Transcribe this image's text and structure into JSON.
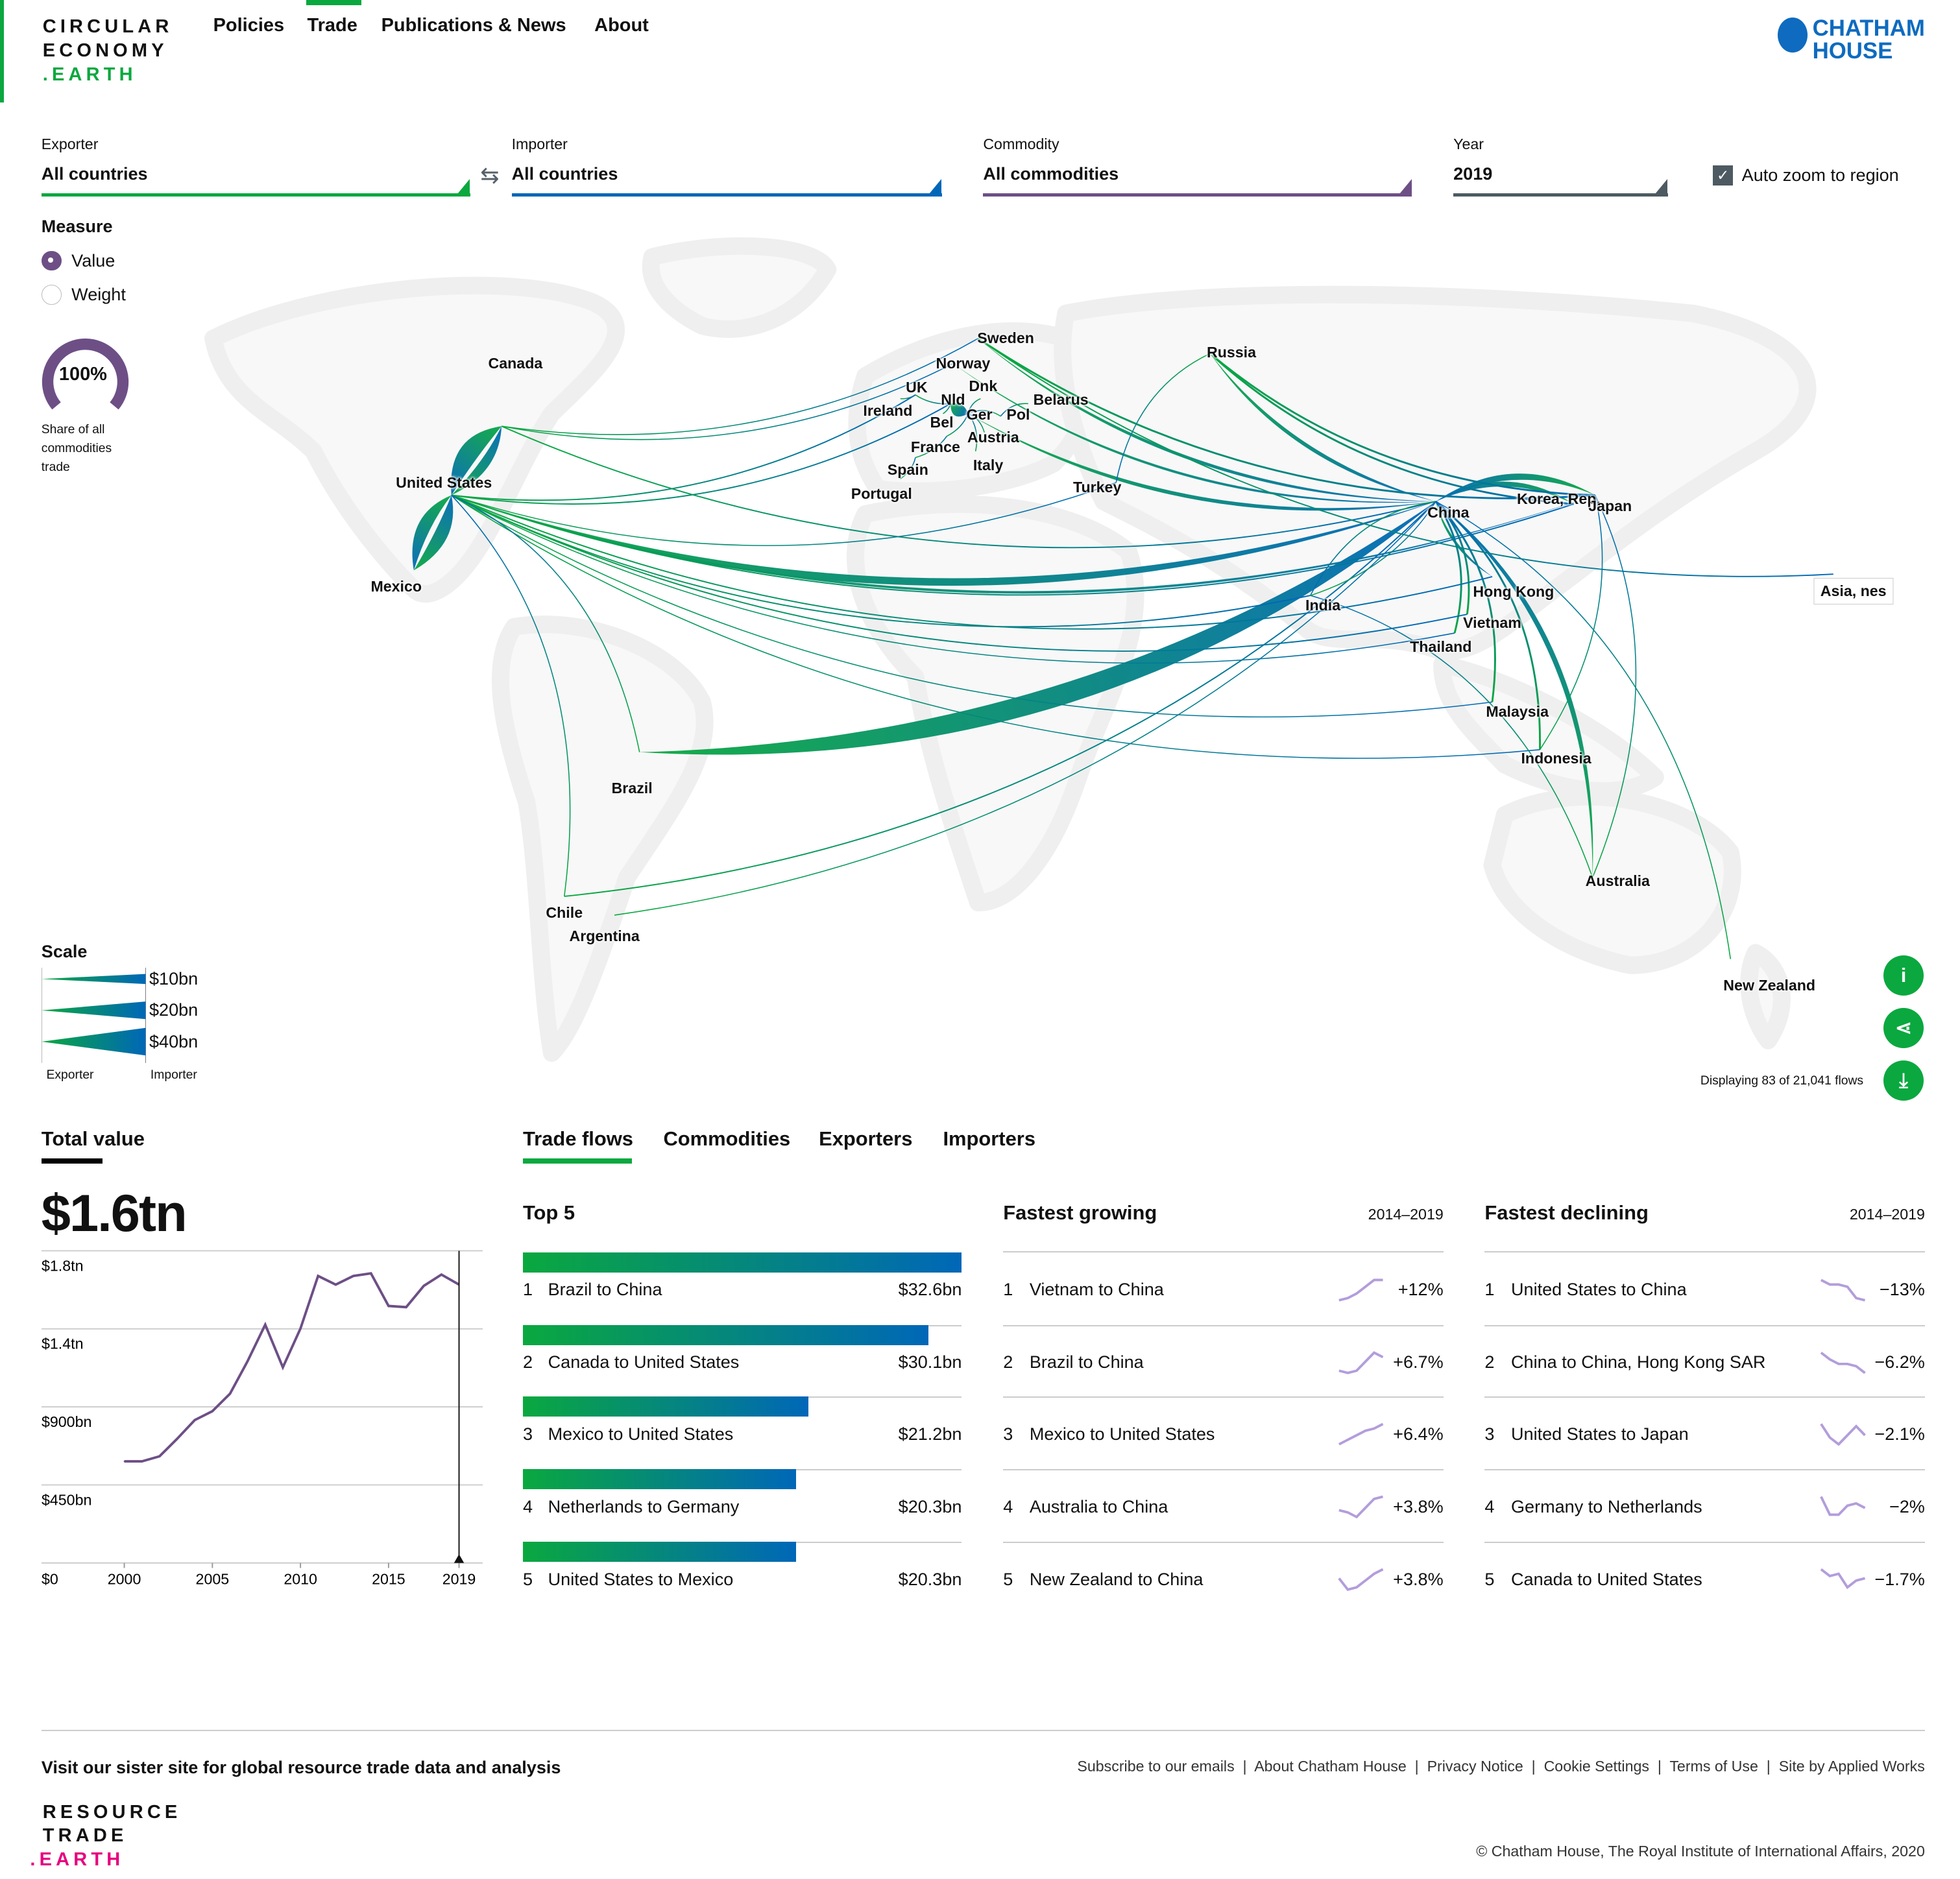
{
  "brand": {
    "logo_lines": [
      "CIRCULAR",
      "ECONOMY",
      ".EARTH"
    ],
    "partner": [
      "CHATHAM",
      "HOUSE"
    ]
  },
  "nav": [
    "Policies",
    "Trade",
    "Publications & News",
    "About"
  ],
  "filters": {
    "exporter": {
      "label": "Exporter",
      "value": "All countries",
      "color": "#0aa83f"
    },
    "importer": {
      "label": "Importer",
      "value": "All countries",
      "color": "#0067b8"
    },
    "commodity": {
      "label": "Commodity",
      "value": "All commodities",
      "color": "#6d4f86"
    },
    "year": {
      "label": "Year",
      "value": "2019",
      "color": "#4d5a62"
    },
    "auto_zoom": {
      "label": "Auto zoom to region",
      "checked": true
    }
  },
  "measure": {
    "title": "Measure",
    "options": [
      "Value",
      "Weight"
    ],
    "selected": "Value"
  },
  "share": {
    "percent": "100%",
    "fraction": 1.0,
    "caption": "Share of all commodities trade"
  },
  "scale": {
    "title": "Scale",
    "items": [
      "$10bn",
      "$20bn",
      "$40bn"
    ],
    "exporter": "Exporter",
    "importer": "Importer"
  },
  "map": {
    "labels": [
      "Canada",
      "United States",
      "Mexico",
      "Sweden",
      "Norway",
      "Russia",
      "UK",
      "Ireland",
      "Dnk",
      "Nld",
      "Bel",
      "Ger",
      "Pol",
      "Belarus",
      "France",
      "Austria",
      "Spain",
      "Italy",
      "Portugal",
      "Turkey",
      "China",
      "Korea, Rep.",
      "Japan",
      "Hong Kong",
      "India",
      "Vietnam",
      "Thailand",
      "Malaysia",
      "Indonesia",
      "Australia",
      "New Zealand",
      "Brazil",
      "Chile",
      "Argentina",
      "Asia, nes"
    ],
    "displaying": "Displaying 83 of 21,041 flows",
    "flows": [
      [
        "Brazil",
        "China",
        32.6
      ],
      [
        "Canada",
        "United States",
        30.1
      ],
      [
        "Mexico",
        "United States",
        21.2
      ],
      [
        "Nld",
        "Ger",
        20.3
      ],
      [
        "United States",
        "Mexico",
        20.3
      ],
      [
        "United States",
        "Canada",
        15
      ],
      [
        "United States",
        "China",
        12
      ],
      [
        "Japan",
        "China",
        10
      ],
      [
        "Korea, Rep.",
        "China",
        8
      ],
      [
        "Australia",
        "China",
        8
      ],
      [
        "Germany",
        "China",
        6
      ],
      [
        "Russia",
        "China",
        6
      ],
      [
        "Sweden",
        "China",
        5
      ],
      [
        "Norway",
        "China",
        4
      ],
      [
        "China",
        "Hong Kong",
        4
      ],
      [
        "United States",
        "Japan",
        4
      ],
      [
        "Sweden",
        "Japan",
        3
      ],
      [
        "Russia",
        "Japan",
        3
      ],
      [
        "Russia",
        "Korea, Rep.",
        3
      ],
      [
        "Vietnam",
        "China",
        3
      ],
      [
        "Thailand",
        "China",
        3
      ],
      [
        "Malaysia",
        "China",
        3
      ],
      [
        "Indonesia",
        "China",
        3
      ],
      [
        "United States",
        "Korea, Rep.",
        2
      ],
      [
        "United States",
        "India",
        2
      ],
      [
        "United States",
        "Hong Kong",
        2
      ],
      [
        "United States",
        "Vietnam",
        2
      ],
      [
        "United States",
        "UK",
        2
      ],
      [
        "United States",
        "Nld",
        2
      ],
      [
        "Canada",
        "China",
        2
      ],
      [
        "Chile",
        "China",
        2
      ],
      [
        "Argentina",
        "China",
        1.5
      ],
      [
        "United States",
        "Thailand",
        1.5
      ],
      [
        "United States",
        "Malaysia",
        1.5
      ],
      [
        "United States",
        "Indonesia",
        1
      ],
      [
        "United States",
        "Turkey",
        1
      ],
      [
        "Brazil",
        "United States",
        1
      ],
      [
        "Chile",
        "United States",
        1
      ],
      [
        "China",
        "India",
        1
      ],
      [
        "Australia",
        "India",
        1
      ],
      [
        "New Zealand",
        "China",
        1
      ],
      [
        "Sweden",
        "Asia, nes",
        2
      ],
      [
        "Canada",
        "Norway",
        1
      ],
      [
        "Canada",
        "Sweden",
        1.5
      ],
      [
        "UK",
        "Nld",
        1
      ],
      [
        "Bel",
        "Nld",
        1
      ],
      [
        "France",
        "Ger",
        1
      ],
      [
        "Spain",
        "France",
        1
      ],
      [
        "Italy",
        "Ger",
        1
      ],
      [
        "Austria",
        "Ger",
        1
      ],
      [
        "Pol",
        "Ger",
        1
      ],
      [
        "Dnk",
        "Ger",
        1
      ],
      [
        "Ireland",
        "UK",
        1
      ],
      [
        "Portugal",
        "Spain",
        1
      ],
      [
        "Belarus",
        "Pol",
        1
      ],
      [
        "Russia",
        "Turkey",
        1
      ],
      [
        "Australia",
        "Japan",
        1.5
      ],
      [
        "Indonesia",
        "Japan",
        1
      ],
      [
        "India",
        "China",
        1
      ]
    ]
  },
  "total": {
    "title": "Total value",
    "value": "$1.6tn"
  },
  "chart_data": {
    "type": "line",
    "title": "Total value",
    "ylabel": "",
    "xlabel": "",
    "x": [
      2000,
      2001,
      2002,
      2003,
      2004,
      2005,
      2006,
      2007,
      2008,
      2009,
      2010,
      2011,
      2012,
      2013,
      2014,
      2015,
      2016,
      2017,
      2018,
      2019
    ],
    "values_bn": [
      586,
      586,
      615,
      716,
      824,
      875,
      976,
      1164,
      1374,
      1128,
      1352,
      1655,
      1605,
      1655,
      1670,
      1482,
      1475,
      1598,
      1663,
      1605
    ],
    "yticks": [
      "$0",
      "$450bn",
      "$900bn",
      "$1.4tn",
      "$1.8tn"
    ],
    "ytick_values": [
      0,
      450,
      900,
      1350,
      1800
    ],
    "xticks": [
      "2000",
      "2005",
      "2010",
      "2015",
      "2019"
    ],
    "ylim": [
      0,
      1800
    ],
    "selected_year": "2019",
    "grid": true
  },
  "tabs": [
    "Trade flows",
    "Commodities",
    "Exporters",
    "Importers"
  ],
  "top5": {
    "title": "Top 5",
    "rows": [
      {
        "rank": "1",
        "name": "Brazil to China",
        "value": "$32.6bn",
        "v": 32.6
      },
      {
        "rank": "2",
        "name": "Canada to United States",
        "value": "$30.1bn",
        "v": 30.1
      },
      {
        "rank": "3",
        "name": "Mexico to United States",
        "value": "$21.2bn",
        "v": 21.2
      },
      {
        "rank": "4",
        "name": "Netherlands to Germany",
        "value": "$20.3bn",
        "v": 20.3
      },
      {
        "rank": "5",
        "name": "United States to Mexico",
        "value": "$20.3bn",
        "v": 20.3
      }
    ]
  },
  "growing": {
    "title": "Fastest growing",
    "period": "2014–2019",
    "rows": [
      {
        "rank": "1",
        "name": "Vietnam to China",
        "value": "+12%",
        "spark": [
          0,
          1,
          3,
          6,
          9,
          9
        ]
      },
      {
        "rank": "2",
        "name": "Brazil to China",
        "value": "+6.7%",
        "spark": [
          1,
          0,
          1,
          5,
          9,
          7
        ]
      },
      {
        "rank": "3",
        "name": "Mexico to United States",
        "value": "+6.4%",
        "spark": [
          0,
          2,
          4,
          6,
          7,
          9
        ]
      },
      {
        "rank": "4",
        "name": "Australia to China",
        "value": "+3.8%",
        "spark": [
          3,
          2,
          0,
          4,
          8,
          9
        ]
      },
      {
        "rank": "5",
        "name": "New Zealand to China",
        "value": "+3.8%",
        "spark": [
          5,
          0,
          1,
          4,
          7,
          9
        ]
      }
    ]
  },
  "declining": {
    "title": "Fastest declining",
    "period": "2014–2019",
    "rows": [
      {
        "rank": "1",
        "name": "United States to China",
        "value": "−13%",
        "spark": [
          9,
          7,
          7,
          6,
          1,
          0
        ]
      },
      {
        "rank": "2",
        "name": "China to China, Hong Kong SAR",
        "value": "−6.2%",
        "spark": [
          9,
          6,
          4,
          4,
          3,
          0
        ]
      },
      {
        "rank": "3",
        "name": "United States to Japan",
        "value": "−2.1%",
        "spark": [
          9,
          3,
          0,
          4,
          8,
          4
        ]
      },
      {
        "rank": "4",
        "name": "Germany to Netherlands",
        "value": "−2%",
        "spark": [
          9,
          1,
          1,
          5,
          6,
          4
        ]
      },
      {
        "rank": "5",
        "name": "Canada to United States",
        "value": "−1.7%",
        "spark": [
          9,
          6,
          7,
          1,
          4,
          5
        ]
      }
    ]
  },
  "footer": {
    "sister": "Visit our sister site for global resource trade data and analysis",
    "links": [
      "Subscribe to our emails",
      "About Chatham House",
      "Privacy Notice",
      "Cookie Settings",
      "Terms of Use",
      "Site by Applied Works"
    ],
    "logo_lines": [
      "RESOURCE",
      "TRADE",
      ".EARTH"
    ],
    "copyright": "© Chatham House, The Royal Institute of International Affairs, 2020"
  }
}
